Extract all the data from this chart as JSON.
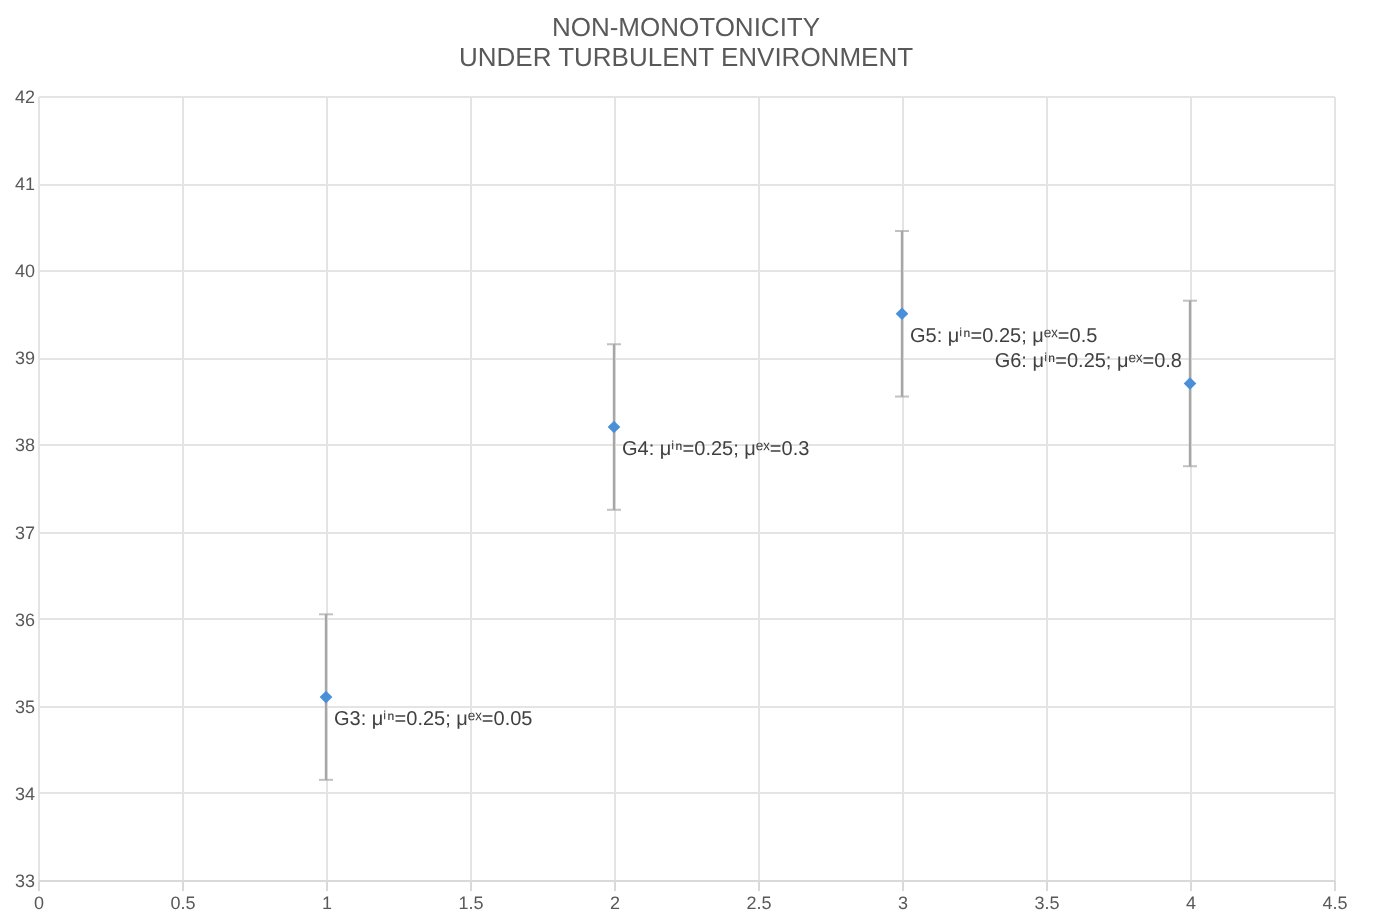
{
  "chart_data": {
    "type": "scatter",
    "title": "NON-MONOTONICITY\nUNDER TURBULENT ENVIRONMENT",
    "x": [
      1,
      2,
      3,
      4
    ],
    "series": [
      {
        "color": "#4a90d9",
        "values": [
          35.1,
          38.2,
          39.5,
          38.7
        ],
        "errors": [
          0.95,
          0.95,
          0.95,
          0.95
        ]
      }
    ],
    "marker": "diamond",
    "grid": true,
    "xlim": [
      0,
      4.5
    ],
    "xticks": [
      0,
      0.5,
      1,
      1.5,
      2,
      2.5,
      3,
      3.5,
      4,
      4.5
    ],
    "ylim": [
      33,
      42
    ],
    "yticks": [
      33,
      34,
      35,
      36,
      37,
      38,
      39,
      40,
      41,
      42
    ],
    "annotations": [
      {
        "text": "G3: μⁱⁿ=0.25; μᵉˣ=0.05",
        "x": 1,
        "y": 35.1
      },
      {
        "text": "G4: μⁱⁿ=0.25; μᵉˣ=0.3",
        "x": 2,
        "y": 38.2
      },
      {
        "text": "G5: μⁱⁿ=0.25; μᵉˣ=0.5",
        "x": 3,
        "y": 39.5
      },
      {
        "text": "G6: μⁱⁿ=0.25; μᵉˣ=0.8",
        "x": 4,
        "y": 38.7
      }
    ]
  }
}
